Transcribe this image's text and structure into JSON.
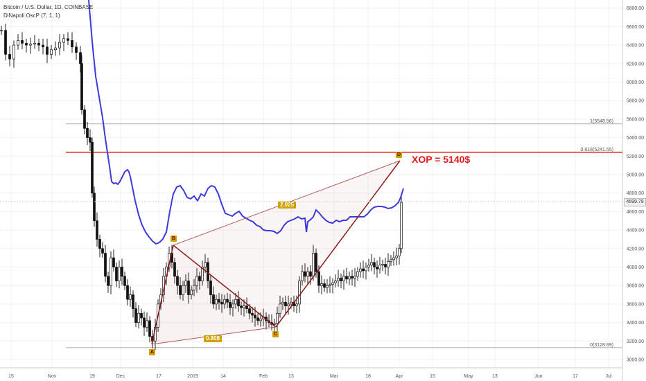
{
  "header": {
    "symbol_line": "Bitcoin / U.S. Dollar, 1D, COINBASE",
    "indicator_line": "DiNapoli OscP (7, 1, 1)"
  },
  "chart_data": {
    "type": "candlestick",
    "y_ticks": [
      "6800.00",
      "6600.00",
      "6400.00",
      "6200.00",
      "6000.00",
      "5800.00",
      "5600.00",
      "5400.00",
      "5200.00",
      "5000.00",
      "4800.00",
      "4600.00",
      "4400.00",
      "4200.00",
      "4000.00",
      "3800.00",
      "3600.00",
      "3400.00",
      "3200.00",
      "3000.00"
    ],
    "x_ticks": [
      "15",
      "Nov",
      "19",
      "Dec",
      "17",
      "2019",
      "14",
      "Feb",
      "13",
      "Mar",
      "18",
      "Apr",
      "15",
      "May",
      "13",
      "Jun",
      "17",
      "Jul"
    ],
    "price_tag": "4699.79",
    "levels": [
      {
        "label": "1(5548.56)",
        "value": 5548.56,
        "color": "#b0b0b0"
      },
      {
        "label": "0.618(5241.55)",
        "value": 5241.55,
        "color": "#e21b1b"
      },
      {
        "label": "0(3128.89)",
        "value": 3128.89,
        "color": "#b0b0b0"
      }
    ],
    "harmonic": {
      "points": [
        {
          "name": "A",
          "date": "2018-12-15",
          "price": 3128.89
        },
        {
          "name": "B",
          "date": "2018-12-24",
          "price": 4236
        },
        {
          "name": "C",
          "date": "2019-02-08",
          "price": 3373
        },
        {
          "name": "D",
          "date": "2019-04-02",
          "price": 5140
        }
      ],
      "ratios": [
        "0.808",
        "2.025"
      ],
      "target_text": "XOP = 5140$"
    },
    "oscillator_color": "#3b3bdb"
  }
}
